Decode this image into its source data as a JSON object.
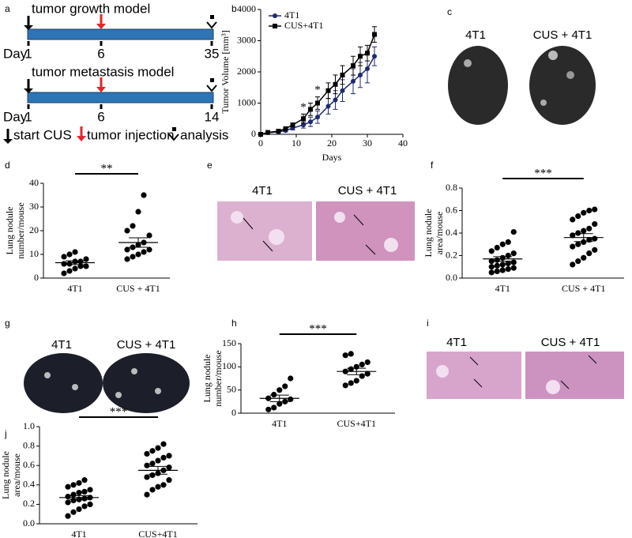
{
  "panels": [
    "a",
    "b",
    "c",
    "d",
    "e",
    "f",
    "g",
    "h",
    "i",
    "j"
  ],
  "diagram": {
    "growth_title": "tumor growth model",
    "metastasis_title": "tumor metastasis model",
    "day": "Day",
    "growth_days": [
      "1",
      "6",
      "35"
    ],
    "metastasis_days": [
      "1",
      "6",
      "14"
    ],
    "legend": [
      "start CUS",
      "tumor injection",
      "analysis"
    ]
  },
  "photos": {
    "c": [
      "4T1",
      "CUS + 4T1"
    ],
    "e": [
      "4T1",
      "CUS + 4T1"
    ],
    "g": [
      "4T1",
      "CUS + 4T1"
    ],
    "i": [
      "4T1",
      "CUS + 4T1"
    ]
  },
  "chart_data": [
    {
      "type": "line",
      "xlabel": "Days",
      "ylabel": "Tumor Volume [mm³]",
      "x": [
        0,
        2,
        5,
        7,
        9,
        12,
        14,
        16,
        19,
        21,
        23,
        26,
        28,
        30,
        32
      ],
      "series": [
        {
          "name": "4T1",
          "color": "#1f2a6e",
          "values": [
            0,
            50,
            80,
            120,
            200,
            300,
            400,
            550,
            900,
            1100,
            1400,
            1700,
            1900,
            2100,
            2500
          ],
          "errors": [
            0,
            20,
            30,
            40,
            60,
            100,
            150,
            200,
            250,
            300,
            350,
            400,
            400,
            450,
            300
          ]
        },
        {
          "name": "CUS+4T1",
          "color": "#000000",
          "values": [
            0,
            60,
            100,
            180,
            300,
            500,
            800,
            1000,
            1400,
            1600,
            1900,
            2200,
            2500,
            2600,
            3200
          ],
          "errors": [
            0,
            20,
            30,
            40,
            60,
            150,
            200,
            200,
            250,
            300,
            300,
            300,
            300,
            250,
            250
          ]
        }
      ],
      "annotations": [
        "*",
        "*"
      ],
      "xlim": [
        0,
        40
      ],
      "xticks": [
        0,
        10,
        20,
        30,
        40
      ],
      "ylim": [
        0,
        4000
      ],
      "yticks": [
        0,
        1000,
        2000,
        3000,
        4000
      ]
    },
    {
      "type": "dot",
      "ylabel": [
        "Lung nodule",
        "number/mouse"
      ],
      "categories": [
        "4T1",
        "CUS + 4T1"
      ],
      "significance": "**",
      "groups": [
        {
          "values": [
            2,
            3,
            4,
            5,
            5,
            6,
            6,
            7,
            7,
            8,
            9,
            10,
            11
          ],
          "mean": 6.5,
          "sem": 0.8
        },
        {
          "values": [
            8,
            9,
            10,
            11,
            12,
            12,
            13,
            14,
            15,
            18,
            20,
            22,
            28,
            35
          ],
          "mean": 15,
          "sem": 2
        }
      ],
      "ylim": [
        0,
        40
      ],
      "yticks": [
        0,
        10,
        20,
        30,
        40
      ]
    },
    {
      "type": "dot",
      "ylabel": [
        "Lung nodule",
        "area/mouse"
      ],
      "categories": [
        "4T1",
        "CUS + 4T1"
      ],
      "significance": "***",
      "groups": [
        {
          "values": [
            0.05,
            0.06,
            0.07,
            0.08,
            0.09,
            0.1,
            0.11,
            0.12,
            0.13,
            0.14,
            0.15,
            0.16,
            0.18,
            0.2,
            0.22,
            0.24,
            0.27,
            0.3,
            0.32,
            0.41
          ],
          "mean": 0.17,
          "sem": 0.02
        },
        {
          "values": [
            0.12,
            0.15,
            0.18,
            0.22,
            0.25,
            0.28,
            0.3,
            0.32,
            0.34,
            0.35,
            0.38,
            0.4,
            0.42,
            0.44,
            0.48,
            0.52,
            0.55,
            0.58,
            0.6,
            0.61
          ],
          "mean": 0.36,
          "sem": 0.035
        }
      ],
      "ylim": [
        0,
        0.8
      ],
      "yticks": [
        {
          "value": 0,
          "label": "0.0"
        },
        0.2,
        0.4,
        0.6,
        0.8
      ]
    },
    {
      "type": "dot",
      "ylabel": [
        "Lung nodule",
        "number/mouse"
      ],
      "categories": [
        "4T1",
        "CUS+4T1"
      ],
      "significance": "***",
      "groups": [
        {
          "values": [
            8,
            12,
            20,
            25,
            30,
            32,
            40,
            50,
            58,
            75
          ],
          "mean": 32,
          "sem": 7
        },
        {
          "values": [
            60,
            65,
            70,
            80,
            85,
            90,
            95,
            100,
            105,
            110,
            125,
            128
          ],
          "mean": 90,
          "sem": 7
        }
      ],
      "ylim": [
        0,
        150
      ],
      "yticks": [
        0,
        50,
        100,
        150
      ]
    },
    {
      "type": "dot",
      "ylabel": [
        "Lung nodule",
        "area/mouse"
      ],
      "categories": [
        "4T1",
        "CUS+4T1"
      ],
      "significance": "***",
      "groups": [
        {
          "values": [
            0.08,
            0.12,
            0.15,
            0.18,
            0.2,
            0.22,
            0.24,
            0.25,
            0.26,
            0.27,
            0.28,
            0.3,
            0.32,
            0.33,
            0.35,
            0.38,
            0.4,
            0.42,
            0.45
          ],
          "mean": 0.27,
          "sem": 0.02
        },
        {
          "values": [
            0.3,
            0.35,
            0.38,
            0.4,
            0.45,
            0.48,
            0.5,
            0.52,
            0.55,
            0.58,
            0.6,
            0.62,
            0.65,
            0.68,
            0.7,
            0.72,
            0.75,
            0.78,
            0.82
          ],
          "mean": 0.55,
          "sem": 0.04
        }
      ],
      "ylim": [
        0,
        1
      ],
      "yticks": [
        {
          "value": 0,
          "label": "0.0"
        },
        0.2,
        0.4,
        0.6,
        0.8,
        {
          "value": 1,
          "label": "1.0"
        }
      ]
    }
  ]
}
